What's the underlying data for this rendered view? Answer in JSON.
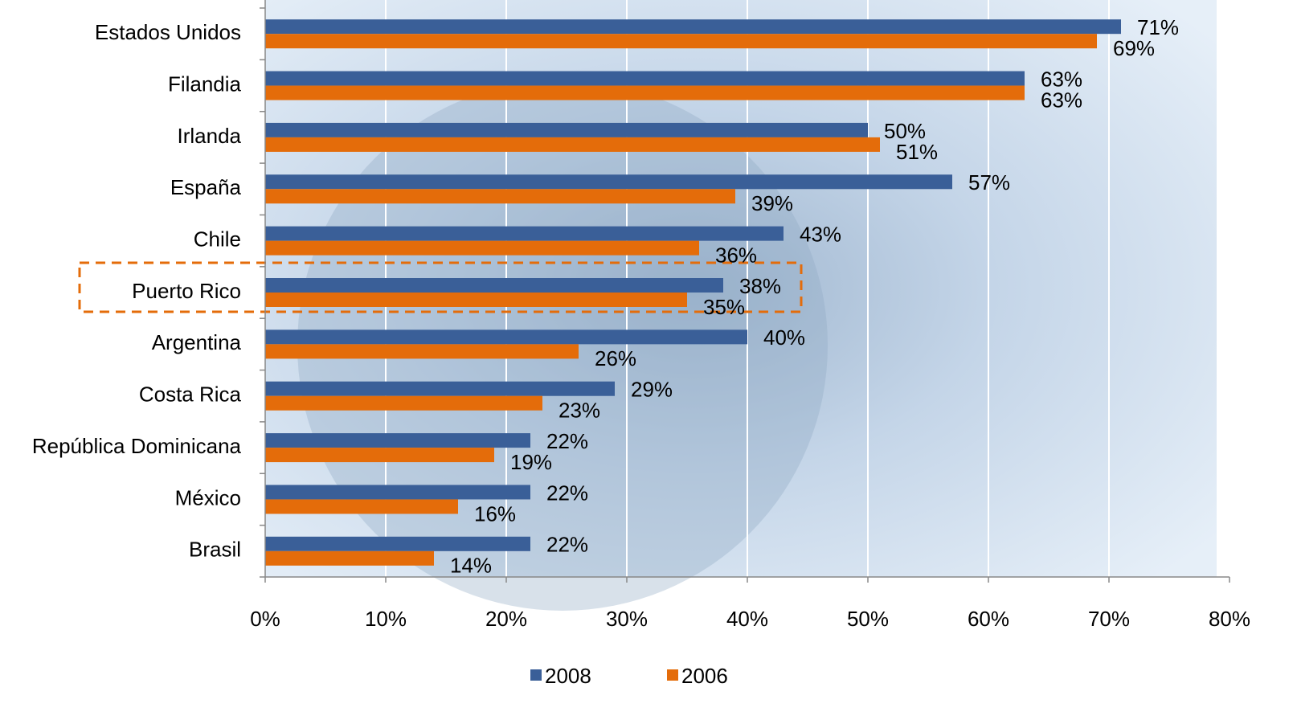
{
  "chart_data": {
    "type": "bar",
    "orientation": "horizontal",
    "categories": [
      "Estados Unidos",
      "Filandia",
      "Irlanda",
      "España",
      "Chile",
      "Puerto Rico",
      "Argentina",
      "Costa Rica",
      "República Dominicana",
      "México",
      "Brasil"
    ],
    "series": [
      {
        "name": "2008",
        "color": "#3a5f98",
        "values": [
          71,
          63,
          50,
          57,
          43,
          38,
          40,
          29,
          22,
          22,
          22
        ],
        "value_labels": [
          "71%",
          "63%",
          "50%",
          "57%",
          "43%",
          "38%",
          "40%",
          "29%",
          "22%",
          "22%",
          "22%"
        ]
      },
      {
        "name": "2006",
        "color": "#e46c0a",
        "values": [
          69,
          63,
          51,
          39,
          36,
          35,
          26,
          23,
          19,
          16,
          14
        ],
        "value_labels": [
          "69%",
          "63%",
          "51%",
          "39%",
          "36%",
          "35%",
          "26%",
          "23%",
          "19%",
          "16%",
          "14%"
        ]
      }
    ],
    "xlim": [
      0,
      80
    ],
    "xticks": [
      {
        "value": 0,
        "label": "0%"
      },
      {
        "value": 10,
        "label": "10%"
      },
      {
        "value": 20,
        "label": "20%"
      },
      {
        "value": 30,
        "label": "30%"
      },
      {
        "value": 40,
        "label": "40%"
      },
      {
        "value": 50,
        "label": "50%"
      },
      {
        "value": 60,
        "label": "60%"
      },
      {
        "value": 70,
        "label": "70%"
      },
      {
        "value": 80,
        "label": "80%"
      }
    ],
    "grid": true,
    "legend": "bottom"
  }
}
